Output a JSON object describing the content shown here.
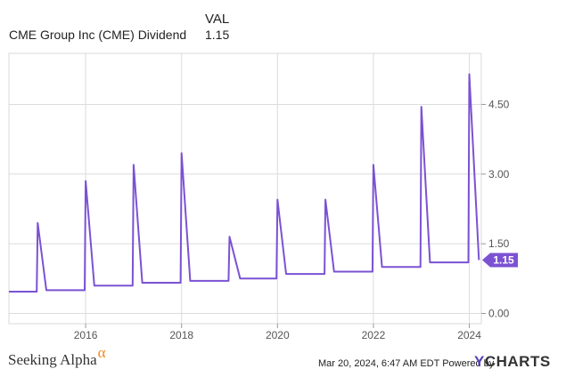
{
  "legend": {
    "header_label": "VAL",
    "series_name": "CME Group Inc (CME) Dividend",
    "series_value": "1.15"
  },
  "chart_data": {
    "type": "line",
    "title": "",
    "xlabel": "",
    "ylabel": "",
    "x_tick_labels": [
      "2016",
      "2018",
      "2020",
      "2022",
      "2024"
    ],
    "y_tick_labels": [
      "0.00",
      "1.50",
      "3.00",
      "4.50"
    ],
    "xlim": [
      2014.4,
      2024.25
    ],
    "ylim": [
      -0.22,
      5.6
    ],
    "y_axis_position": "right",
    "grid": true,
    "line_color": "#7b52d3",
    "end_value_label": "1.15",
    "series": [
      {
        "name": "CME Group Inc (CME) Dividend",
        "points": [
          [
            2014.4,
            0.47
          ],
          [
            2014.98,
            0.47
          ],
          [
            2015.0,
            1.95
          ],
          [
            2015.18,
            0.5
          ],
          [
            2015.98,
            0.5
          ],
          [
            2016.0,
            2.85
          ],
          [
            2016.18,
            0.6
          ],
          [
            2016.98,
            0.6
          ],
          [
            2017.0,
            3.2
          ],
          [
            2017.18,
            0.66
          ],
          [
            2017.98,
            0.66
          ],
          [
            2018.0,
            3.45
          ],
          [
            2018.18,
            0.7
          ],
          [
            2018.98,
            0.7
          ],
          [
            2019.0,
            1.65
          ],
          [
            2019.22,
            0.75
          ],
          [
            2019.98,
            0.75
          ],
          [
            2020.0,
            2.45
          ],
          [
            2020.18,
            0.85
          ],
          [
            2020.98,
            0.85
          ],
          [
            2021.0,
            2.45
          ],
          [
            2021.18,
            0.9
          ],
          [
            2021.98,
            0.9
          ],
          [
            2022.0,
            3.2
          ],
          [
            2022.18,
            1.0
          ],
          [
            2022.98,
            1.0
          ],
          [
            2023.0,
            4.45
          ],
          [
            2023.18,
            1.1
          ],
          [
            2023.98,
            1.1
          ],
          [
            2024.0,
            5.15
          ],
          [
            2024.2,
            1.15
          ]
        ]
      }
    ]
  },
  "footer": {
    "brand_name": "Seeking Alpha",
    "brand_symbol": "α",
    "timestamp": "Mar 20, 2024, 6:47 AM EDT Powered by",
    "ycharts_y": "Y",
    "ycharts_rest": "CHARTS"
  }
}
